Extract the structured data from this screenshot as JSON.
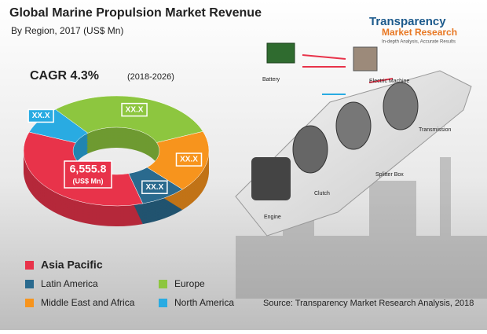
{
  "chart_data": {
    "type": "donut",
    "title": "Global Marine Propulsion Market Revenue",
    "subtitle": "By Region, 2017 (US$ Mn)",
    "cagr": "CAGR 4.3%",
    "cagr_period": "(2018-2026)",
    "unit_label": "(US$ Mn)",
    "categories": [
      "Asia Pacific",
      "Latin America",
      "Middle East and Africa",
      "Europe",
      "North America"
    ],
    "values": [
      6555.8,
      1500,
      3370,
      5710,
      1500
    ],
    "value_labels": [
      "6,555.8",
      "XX.X",
      "XX.X",
      "XX.X",
      "XX.X"
    ],
    "colors": [
      "#e8334a",
      "#2a6a8e",
      "#f7941d",
      "#8dc63f",
      "#29abe2"
    ],
    "source": "Source: Transparency Market Research Analysis, 2018",
    "logo": {
      "name": "Transparency",
      "sub": "Market Research",
      "tagline": "In-depth Analysis, Accurate Results"
    },
    "annotations": [
      "Battery",
      "Electric Machine",
      "Transmission",
      "Splitter Box",
      "Clutch",
      "Engine"
    ]
  }
}
